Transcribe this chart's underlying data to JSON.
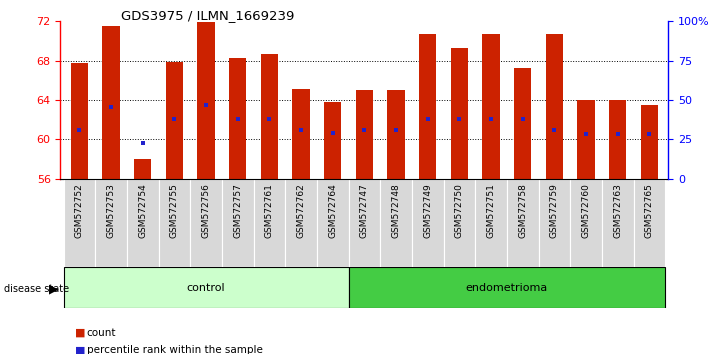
{
  "title": "GDS3975 / ILMN_1669239",
  "samples": [
    "GSM572752",
    "GSM572753",
    "GSM572754",
    "GSM572755",
    "GSM572756",
    "GSM572757",
    "GSM572761",
    "GSM572762",
    "GSM572764",
    "GSM572747",
    "GSM572748",
    "GSM572749",
    "GSM572750",
    "GSM572751",
    "GSM572758",
    "GSM572759",
    "GSM572760",
    "GSM572763",
    "GSM572765"
  ],
  "counts": [
    67.8,
    71.5,
    58.0,
    67.9,
    71.9,
    68.3,
    68.7,
    65.1,
    63.8,
    65.0,
    65.0,
    70.7,
    69.3,
    70.7,
    67.2,
    70.7,
    64.0,
    64.0,
    63.5
  ],
  "percentiles": [
    61.0,
    63.3,
    59.6,
    62.1,
    63.5,
    62.1,
    62.1,
    61.0,
    60.6,
    61.0,
    61.0,
    62.1,
    62.1,
    62.1,
    62.1,
    61.0,
    60.5,
    60.5,
    60.5
  ],
  "n_control": 9,
  "n_endometrioma": 10,
  "ymin": 56,
  "ymax": 72,
  "yticks_left": [
    56,
    60,
    64,
    68,
    72
  ],
  "yticks_right_vals": [
    56,
    60,
    64,
    68,
    72
  ],
  "yticks_right_labels": [
    "0",
    "25",
    "50",
    "75",
    "100%"
  ],
  "grid_lines": [
    60,
    64,
    68
  ],
  "bar_color": "#cc2200",
  "marker_color": "#2222cc",
  "control_color": "#ccffcc",
  "endometrioma_color": "#44cc44",
  "sample_box_color": "#d8d8d8",
  "bar_bottom": 56,
  "bar_width": 0.55
}
